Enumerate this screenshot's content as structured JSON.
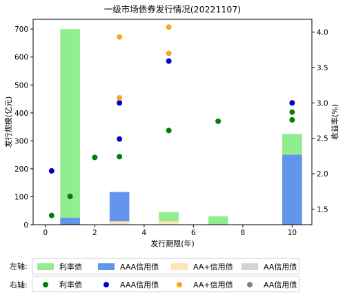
{
  "chart_data": {
    "type": "bar+scatter",
    "title": "一级市场债券发行情况(20221107)",
    "xlabel": "发行期限(年)",
    "ylabel_left": "发行规模(亿元)",
    "ylabel_right": "收益率(%)",
    "xlim": [
      -0.5,
      10.8
    ],
    "ylim_left": [
      0,
      735
    ],
    "ylim_right": [
      1.28,
      4.18
    ],
    "x_ticks": [
      0,
      2,
      4,
      6,
      8,
      10
    ],
    "y_left_ticks": [
      0,
      100,
      200,
      300,
      400,
      500,
      600,
      700
    ],
    "y_right_ticks": [
      1.5,
      2.0,
      2.5,
      3.0,
      3.5,
      4.0
    ],
    "bar_series": [
      {
        "name": "利率债",
        "color": "#90ee90",
        "points": [
          {
            "x": 1,
            "y": 700
          },
          {
            "x": 3,
            "y": 0
          },
          {
            "x": 5,
            "y": 45
          },
          {
            "x": 7,
            "y": 30
          },
          {
            "x": 10,
            "y": 325
          }
        ]
      },
      {
        "name": "AAA信用债",
        "color": "#6495ed",
        "points": [
          {
            "x": 1,
            "y": 25
          },
          {
            "x": 3,
            "y": 117
          },
          {
            "x": 5,
            "y": 10
          },
          {
            "x": 10,
            "y": 250
          }
        ]
      },
      {
        "name": "AA+信用债",
        "color": "#ffe4b5",
        "points": [
          {
            "x": 3,
            "y": 12
          },
          {
            "x": 5,
            "y": 12
          }
        ]
      },
      {
        "name": "AA信用债",
        "color": "#d3d3d3",
        "points": []
      }
    ],
    "scatter_series": [
      {
        "name": "利率债",
        "color": "#008000",
        "points": [
          {
            "x": 0.25,
            "y": 1.41
          },
          {
            "x": 1,
            "y": 1.68
          },
          {
            "x": 2,
            "y": 2.23
          },
          {
            "x": 3,
            "y": 2.24
          },
          {
            "x": 5,
            "y": 2.61
          },
          {
            "x": 7,
            "y": 2.74
          },
          {
            "x": 10,
            "y": 2.76
          },
          {
            "x": 10,
            "y": 2.87
          }
        ]
      },
      {
        "name": "AAA信用债",
        "color": "#0000cd",
        "points": [
          {
            "x": 0.25,
            "y": 2.04
          },
          {
            "x": 3,
            "y": 2.49
          },
          {
            "x": 3,
            "y": 3.0
          },
          {
            "x": 5,
            "y": 3.59
          },
          {
            "x": 10,
            "y": 3.0
          }
        ]
      },
      {
        "name": "AA+信用债",
        "color": "#f5a623",
        "points": [
          {
            "x": 3,
            "y": 3.07
          },
          {
            "x": 3,
            "y": 3.93
          },
          {
            "x": 5,
            "y": 3.7
          },
          {
            "x": 5,
            "y": 4.07
          }
        ]
      },
      {
        "name": "AA信用债",
        "color": "#808080",
        "points": []
      }
    ],
    "legend_left_label": "左轴:",
    "legend_right_label": "右轴:",
    "legend_placement": "bottom",
    "grid": false
  }
}
